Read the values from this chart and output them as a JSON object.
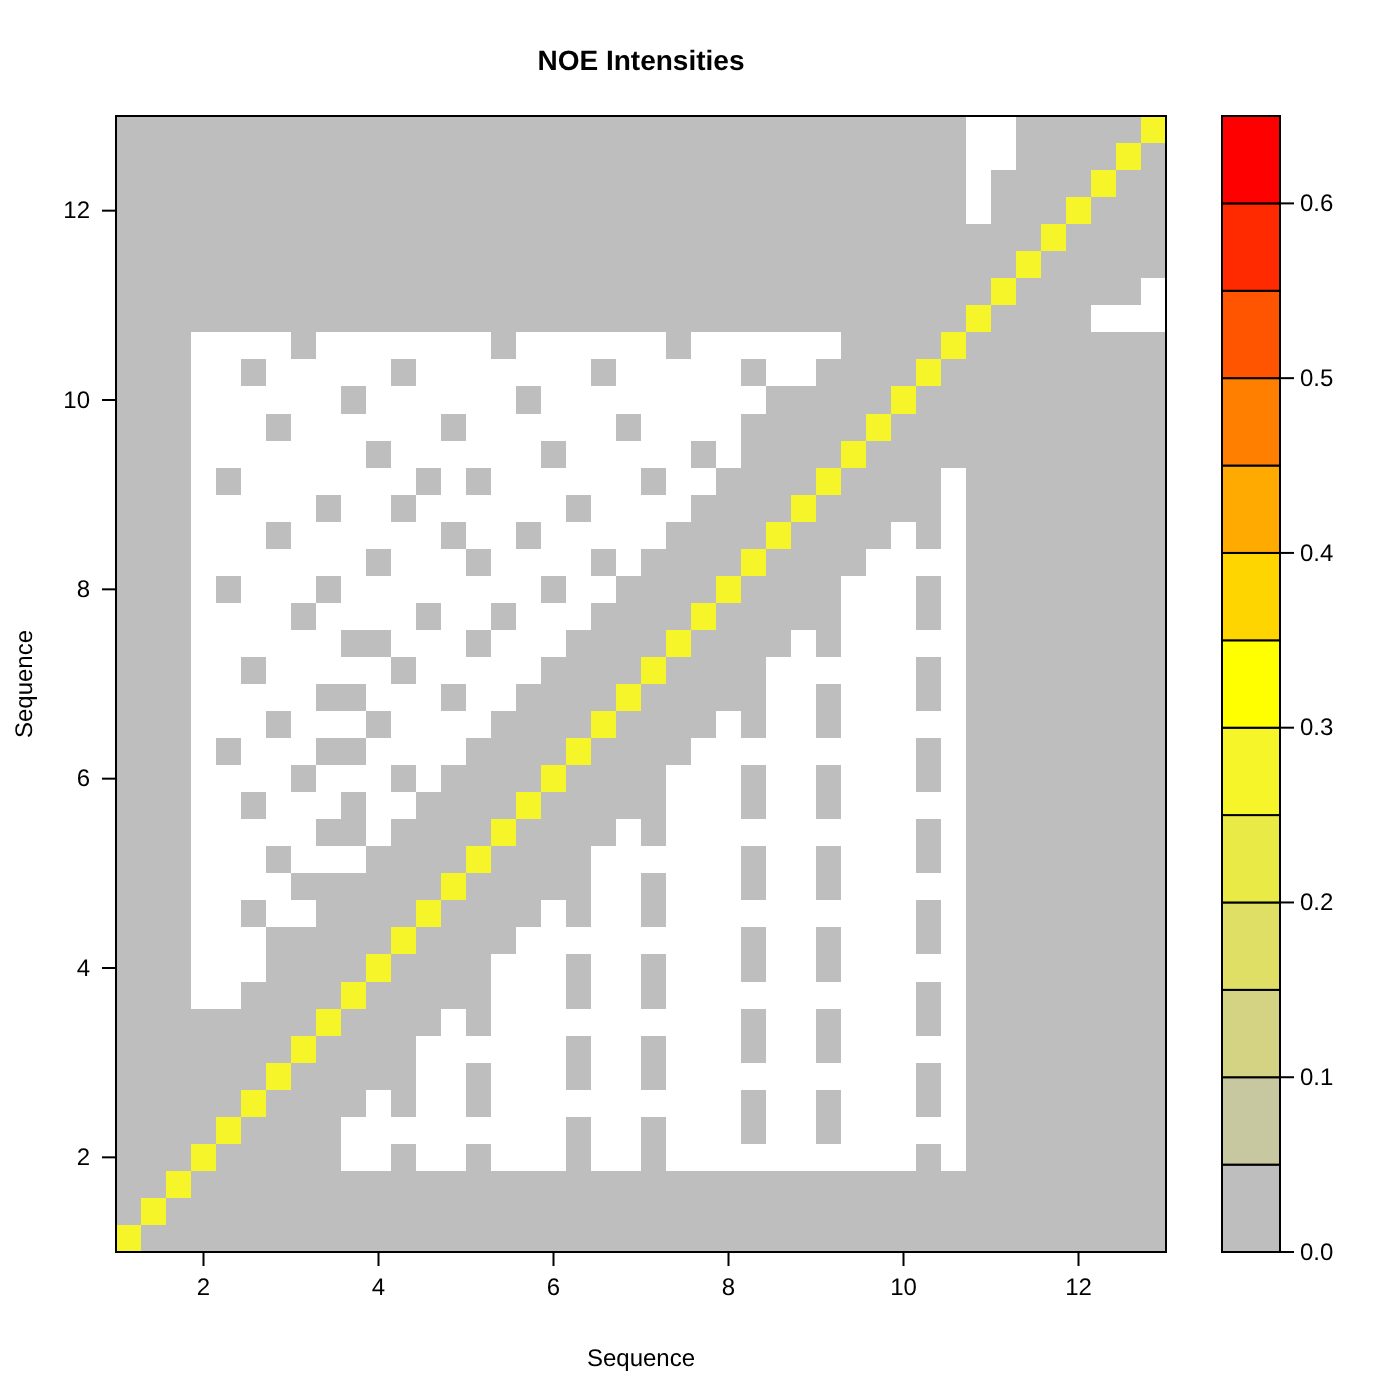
{
  "chart_data": {
    "type": "heatmap",
    "title": "NOE Intensities",
    "xlabel": "Sequence",
    "ylabel": "Sequence",
    "categories": [
      null,
      null,
      null,
      "2",
      null,
      null,
      null,
      null,
      null,
      null,
      "4",
      null,
      null,
      null,
      null,
      null,
      null,
      "6",
      null,
      null,
      null,
      null,
      null,
      null,
      "8",
      null,
      null,
      null,
      null,
      null,
      null,
      "10",
      null,
      null,
      null,
      null,
      null,
      null,
      "12",
      null,
      null,
      null
    ],
    "y_categories": [
      null,
      null,
      null,
      "12",
      null,
      null,
      null,
      null,
      null,
      null,
      "10",
      null,
      null,
      null,
      null,
      null,
      null,
      "8",
      null,
      null,
      null,
      null,
      null,
      null,
      "6",
      null,
      null,
      null,
      null,
      null,
      null,
      "4",
      null,
      null,
      null,
      null,
      null,
      null,
      "2",
      null,
      null,
      null
    ],
    "clim": [
      0,
      0.65
    ],
    "cticks": [
      {
        "value": 0,
        "label": "0.0"
      },
      0.1,
      0.2,
      0.3,
      0.4,
      0.5,
      0.6
    ],
    "colors": [
      "#bebebe",
      "#c8c8a0",
      "#d4d383",
      "#dfdf65",
      "#eaea47",
      "#f5f52a",
      "#ffff00",
      "#ffd500",
      "#ffaa00",
      "#ff8000",
      "#ff5500",
      "#ff2a00",
      "#ff0000"
    ],
    "cells": [
      [
        0,
        0,
        0,
        0,
        0,
        0,
        0,
        0,
        0,
        0,
        0,
        0,
        0,
        0,
        0,
        0,
        0,
        0,
        0,
        0,
        0,
        0,
        0,
        0,
        0,
        0,
        0,
        0,
        0,
        0,
        0,
        0,
        0,
        0,
        null,
        null,
        0,
        0,
        0,
        0,
        0,
        0.25
      ],
      [
        0,
        0,
        0,
        0,
        0,
        0,
        0,
        0,
        0,
        0,
        0,
        0,
        0,
        0,
        0,
        0,
        0,
        0,
        0,
        0,
        0,
        0,
        0,
        0,
        0,
        0,
        0,
        0,
        0,
        0,
        0,
        0,
        0,
        0,
        null,
        null,
        0,
        0,
        0,
        0,
        0.25,
        0
      ],
      [
        0,
        0,
        0,
        0,
        0,
        0,
        0,
        0,
        0,
        0,
        0,
        0,
        0,
        0,
        0,
        0,
        0,
        0,
        0,
        0,
        0,
        0,
        0,
        0,
        0,
        0,
        0,
        0,
        0,
        0,
        0,
        0,
        0,
        0,
        null,
        0,
        0,
        0,
        0,
        0.25,
        0,
        0
      ],
      [
        0,
        0,
        0,
        0,
        0,
        0,
        0,
        0,
        0,
        0,
        0,
        0,
        0,
        0,
        0,
        0,
        0,
        0,
        0,
        0,
        0,
        0,
        0,
        0,
        0,
        0,
        0,
        0,
        0,
        0,
        0,
        0,
        0,
        0,
        null,
        0,
        0,
        0,
        0.25,
        0,
        0,
        0
      ],
      [
        0,
        0,
        0,
        0,
        0,
        0,
        0,
        0,
        0,
        0,
        0,
        0,
        0,
        0,
        0,
        0,
        0,
        0,
        0,
        0,
        0,
        0,
        0,
        0,
        0,
        0,
        0,
        0,
        0,
        0,
        0,
        0,
        0,
        0,
        0,
        0,
        0,
        0.25,
        0,
        0,
        0,
        0
      ],
      [
        0,
        0,
        0,
        0,
        0,
        0,
        0,
        0,
        0,
        0,
        0,
        0,
        0,
        0,
        0,
        0,
        0,
        0,
        0,
        0,
        0,
        0,
        0,
        0,
        0,
        0,
        0,
        0,
        0,
        0,
        0,
        0,
        0,
        0,
        0,
        0,
        0.25,
        0,
        0,
        0,
        0,
        0
      ],
      [
        0,
        0,
        0,
        0,
        0,
        0,
        0,
        0,
        0,
        0,
        0,
        0,
        0,
        0,
        0,
        0,
        0,
        0,
        0,
        0,
        0,
        0,
        0,
        0,
        0,
        0,
        0,
        0,
        0,
        0,
        0,
        0,
        0,
        0,
        0,
        0.25,
        0,
        0,
        0,
        0,
        0,
        null
      ],
      [
        0,
        0,
        0,
        0,
        0,
        0,
        0,
        0,
        0,
        0,
        0,
        0,
        0,
        0,
        0,
        0,
        0,
        0,
        0,
        0,
        0,
        0,
        0,
        0,
        0,
        0,
        0,
        0,
        0,
        0,
        0,
        0,
        0,
        0,
        0.25,
        0,
        0,
        0,
        0,
        null,
        null,
        null
      ],
      [
        0,
        0,
        0,
        null,
        null,
        null,
        null,
        0,
        null,
        null,
        null,
        null,
        null,
        null,
        null,
        0,
        null,
        null,
        null,
        null,
        null,
        null,
        0,
        null,
        null,
        null,
        null,
        null,
        null,
        0,
        0,
        0,
        0,
        0.25,
        0,
        0,
        0,
        0,
        0,
        0,
        0,
        0
      ],
      [
        0,
        0,
        0,
        null,
        null,
        0,
        null,
        null,
        null,
        null,
        null,
        0,
        null,
        null,
        null,
        null,
        null,
        null,
        null,
        0,
        null,
        null,
        null,
        null,
        null,
        0,
        null,
        null,
        0,
        0,
        0,
        0,
        0.25,
        0,
        0,
        0,
        0,
        0,
        0,
        0,
        0,
        0
      ],
      [
        0,
        0,
        0,
        null,
        null,
        null,
        null,
        null,
        null,
        0,
        null,
        null,
        null,
        null,
        null,
        null,
        0,
        null,
        null,
        null,
        null,
        null,
        null,
        null,
        null,
        null,
        0,
        0,
        0,
        0,
        0,
        0.25,
        0,
        0,
        0,
        0,
        0,
        0,
        0,
        0,
        0,
        0
      ],
      [
        0,
        0,
        0,
        null,
        null,
        null,
        0,
        null,
        null,
        null,
        null,
        null,
        null,
        0,
        null,
        null,
        null,
        null,
        null,
        null,
        0,
        null,
        null,
        null,
        null,
        0,
        0,
        0,
        0,
        0,
        0.25,
        0,
        0,
        0,
        0,
        0,
        0,
        0,
        0,
        0,
        0,
        0
      ],
      [
        0,
        0,
        0,
        null,
        null,
        null,
        null,
        null,
        null,
        null,
        0,
        null,
        null,
        null,
        null,
        null,
        null,
        0,
        null,
        null,
        null,
        null,
        null,
        0,
        null,
        0,
        0,
        0,
        0,
        0.25,
        0,
        0,
        0,
        0,
        0,
        0,
        0,
        0,
        0,
        0,
        0,
        0
      ],
      [
        0,
        0,
        0,
        null,
        0,
        null,
        null,
        null,
        null,
        null,
        null,
        null,
        0,
        null,
        0,
        null,
        null,
        null,
        null,
        null,
        null,
        0,
        null,
        null,
        0,
        0,
        0,
        0,
        0.25,
        0,
        0,
        0,
        0,
        null,
        0,
        0,
        0,
        0,
        0,
        0,
        0,
        0
      ],
      [
        0,
        0,
        0,
        null,
        null,
        null,
        null,
        null,
        0,
        null,
        null,
        0,
        null,
        null,
        null,
        null,
        null,
        null,
        0,
        null,
        null,
        null,
        null,
        0,
        0,
        0,
        0,
        0.25,
        0,
        0,
        0,
        0,
        0,
        null,
        0,
        0,
        0,
        0,
        0,
        0,
        0,
        0
      ],
      [
        0,
        0,
        0,
        null,
        null,
        null,
        0,
        null,
        null,
        null,
        null,
        null,
        null,
        0,
        null,
        null,
        0,
        null,
        null,
        null,
        null,
        null,
        0,
        0,
        0,
        0,
        0.25,
        0,
        0,
        0,
        0,
        null,
        0,
        null,
        0,
        0,
        0,
        0,
        0,
        0,
        0,
        0
      ],
      [
        0,
        0,
        0,
        null,
        null,
        null,
        null,
        null,
        null,
        null,
        0,
        null,
        null,
        null,
        0,
        null,
        null,
        null,
        null,
        0,
        null,
        0,
        0,
        0,
        0,
        0.25,
        0,
        0,
        0,
        0,
        null,
        null,
        null,
        null,
        0,
        0,
        0,
        0,
        0,
        0,
        0,
        0
      ],
      [
        0,
        0,
        0,
        null,
        0,
        null,
        null,
        null,
        0,
        null,
        null,
        null,
        null,
        null,
        null,
        null,
        null,
        0,
        null,
        null,
        0,
        0,
        0,
        0,
        0.25,
        0,
        0,
        0,
        0,
        null,
        null,
        null,
        0,
        null,
        0,
        0,
        0,
        0,
        0,
        0,
        0,
        0
      ],
      [
        0,
        0,
        0,
        null,
        null,
        null,
        null,
        0,
        null,
        null,
        null,
        null,
        0,
        null,
        null,
        0,
        null,
        null,
        null,
        0,
        0,
        0,
        0,
        0.25,
        0,
        0,
        0,
        0,
        0,
        null,
        null,
        null,
        0,
        null,
        0,
        0,
        0,
        0,
        0,
        0,
        0,
        0
      ],
      [
        0,
        0,
        0,
        null,
        null,
        null,
        null,
        null,
        null,
        0,
        0,
        null,
        null,
        null,
        0,
        null,
        null,
        null,
        0,
        0,
        0,
        0,
        0.25,
        0,
        0,
        0,
        0,
        null,
        0,
        null,
        null,
        null,
        null,
        null,
        0,
        0,
        0,
        0,
        0,
        0,
        0,
        0
      ],
      [
        0,
        0,
        0,
        null,
        null,
        0,
        null,
        null,
        null,
        null,
        null,
        0,
        null,
        null,
        null,
        null,
        null,
        0,
        0,
        0,
        0,
        0.25,
        0,
        0,
        0,
        0,
        null,
        null,
        null,
        null,
        null,
        null,
        0,
        null,
        0,
        0,
        0,
        0,
        0,
        0,
        0,
        0
      ],
      [
        0,
        0,
        0,
        null,
        null,
        null,
        null,
        null,
        0,
        0,
        null,
        null,
        null,
        0,
        null,
        null,
        0,
        0,
        0,
        0,
        0.25,
        0,
        0,
        0,
        0,
        0,
        null,
        null,
        0,
        null,
        null,
        null,
        0,
        null,
        0,
        0,
        0,
        0,
        0,
        0,
        0,
        0
      ],
      [
        0,
        0,
        0,
        null,
        null,
        null,
        0,
        null,
        null,
        null,
        0,
        null,
        null,
        null,
        null,
        0,
        0,
        0,
        0,
        0.25,
        0,
        0,
        0,
        0,
        null,
        0,
        null,
        null,
        0,
        null,
        null,
        null,
        null,
        null,
        0,
        0,
        0,
        0,
        0,
        0,
        0,
        0
      ],
      [
        0,
        0,
        0,
        null,
        0,
        null,
        null,
        null,
        0,
        0,
        null,
        null,
        null,
        null,
        0,
        0,
        0,
        0,
        0.25,
        0,
        0,
        0,
        0,
        null,
        null,
        null,
        null,
        null,
        null,
        null,
        null,
        null,
        0,
        null,
        0,
        0,
        0,
        0,
        0,
        0,
        0,
        0
      ],
      [
        0,
        0,
        0,
        null,
        null,
        null,
        null,
        0,
        null,
        null,
        null,
        0,
        null,
        0,
        0,
        0,
        0,
        0.25,
        0,
        0,
        0,
        0,
        null,
        null,
        null,
        0,
        null,
        null,
        0,
        null,
        null,
        null,
        0,
        null,
        0,
        0,
        0,
        0,
        0,
        0,
        0,
        0
      ],
      [
        0,
        0,
        0,
        null,
        null,
        0,
        null,
        null,
        null,
        0,
        null,
        null,
        0,
        0,
        0,
        0,
        0.25,
        0,
        0,
        0,
        0,
        0,
        null,
        null,
        null,
        0,
        null,
        null,
        0,
        null,
        null,
        null,
        null,
        null,
        0,
        0,
        0,
        0,
        0,
        0,
        0,
        0
      ],
      [
        0,
        0,
        0,
        null,
        null,
        null,
        null,
        null,
        0,
        0,
        null,
        0,
        0,
        0,
        0,
        0.25,
        0,
        0,
        0,
        0,
        null,
        0,
        null,
        null,
        null,
        null,
        null,
        null,
        null,
        null,
        null,
        null,
        0,
        null,
        0,
        0,
        0,
        0,
        0,
        0,
        0,
        0
      ],
      [
        0,
        0,
        0,
        null,
        null,
        null,
        0,
        null,
        null,
        null,
        0,
        0,
        0,
        0,
        0.25,
        0,
        0,
        0,
        0,
        null,
        null,
        null,
        null,
        null,
        null,
        0,
        null,
        null,
        0,
        null,
        null,
        null,
        0,
        null,
        0,
        0,
        0,
        0,
        0,
        0,
        0,
        0
      ],
      [
        0,
        0,
        0,
        null,
        null,
        null,
        null,
        0,
        0,
        0,
        0,
        0,
        0,
        0.25,
        0,
        0,
        0,
        0,
        0,
        null,
        null,
        0,
        null,
        null,
        null,
        0,
        null,
        null,
        0,
        null,
        null,
        null,
        null,
        null,
        0,
        0,
        0,
        0,
        0,
        0,
        0,
        0
      ],
      [
        0,
        0,
        0,
        null,
        null,
        0,
        null,
        null,
        0,
        0,
        0,
        0,
        0.25,
        0,
        0,
        0,
        0,
        null,
        0,
        null,
        null,
        0,
        null,
        null,
        null,
        null,
        null,
        null,
        null,
        null,
        null,
        null,
        0,
        null,
        0,
        0,
        0,
        0,
        0,
        0,
        0,
        0
      ],
      [
        0,
        0,
        0,
        null,
        null,
        null,
        0,
        0,
        0,
        0,
        0,
        0.25,
        0,
        0,
        0,
        0,
        null,
        null,
        null,
        null,
        null,
        null,
        null,
        null,
        null,
        0,
        null,
        null,
        0,
        null,
        null,
        null,
        0,
        null,
        0,
        0,
        0,
        0,
        0,
        0,
        0,
        0
      ],
      [
        0,
        0,
        0,
        null,
        null,
        null,
        0,
        0,
        0,
        0,
        0.25,
        0,
        0,
        0,
        0,
        null,
        null,
        null,
        0,
        null,
        null,
        0,
        null,
        null,
        null,
        0,
        null,
        null,
        0,
        null,
        null,
        null,
        null,
        null,
        0,
        0,
        0,
        0,
        0,
        0,
        0,
        0
      ],
      [
        0,
        0,
        0,
        null,
        null,
        0,
        0,
        0,
        0,
        0.25,
        0,
        0,
        0,
        0,
        0,
        null,
        null,
        null,
        0,
        null,
        null,
        0,
        null,
        null,
        null,
        null,
        null,
        null,
        null,
        null,
        null,
        null,
        0,
        null,
        0,
        0,
        0,
        0,
        0,
        0,
        0,
        0
      ],
      [
        0,
        0,
        0,
        0,
        0,
        0,
        0,
        0,
        0.25,
        0,
        0,
        0,
        0,
        null,
        0,
        null,
        null,
        null,
        null,
        null,
        null,
        null,
        null,
        null,
        null,
        0,
        null,
        null,
        0,
        null,
        null,
        null,
        0,
        null,
        0,
        0,
        0,
        0,
        0,
        0,
        0,
        0
      ],
      [
        0,
        0,
        0,
        0,
        0,
        0,
        0,
        0.25,
        0,
        0,
        0,
        0,
        null,
        null,
        null,
        null,
        null,
        null,
        0,
        null,
        null,
        0,
        null,
        null,
        null,
        0,
        null,
        null,
        0,
        null,
        null,
        null,
        null,
        null,
        0,
        0,
        0,
        0,
        0,
        0,
        0,
        0
      ],
      [
        0,
        0,
        0,
        0,
        0,
        0,
        0.25,
        0,
        0,
        0,
        0,
        0,
        null,
        null,
        0,
        null,
        null,
        null,
        0,
        null,
        null,
        0,
        null,
        null,
        null,
        null,
        null,
        null,
        null,
        null,
        null,
        null,
        0,
        null,
        0,
        0,
        0,
        0,
        0,
        0,
        0,
        0
      ],
      [
        0,
        0,
        0,
        0,
        0,
        0.25,
        0,
        0,
        0,
        0,
        null,
        0,
        null,
        null,
        0,
        null,
        null,
        null,
        null,
        null,
        null,
        null,
        null,
        null,
        null,
        0,
        null,
        null,
        0,
        null,
        null,
        null,
        0,
        null,
        0,
        0,
        0,
        0,
        0,
        0,
        0,
        0
      ],
      [
        0,
        0,
        0,
        0,
        0.25,
        0,
        0,
        0,
        0,
        null,
        null,
        null,
        null,
        null,
        null,
        null,
        null,
        null,
        0,
        null,
        null,
        0,
        null,
        null,
        null,
        0,
        null,
        null,
        0,
        null,
        null,
        null,
        null,
        null,
        0,
        0,
        0,
        0,
        0,
        0,
        0,
        0
      ],
      [
        0,
        0,
        0,
        0.25,
        0,
        0,
        0,
        0,
        0,
        null,
        null,
        0,
        null,
        null,
        0,
        null,
        null,
        null,
        0,
        null,
        null,
        0,
        null,
        null,
        null,
        null,
        null,
        null,
        null,
        null,
        null,
        null,
        0,
        null,
        0,
        0,
        0,
        0,
        0,
        0,
        0,
        0
      ],
      [
        0,
        0,
        0.25,
        0,
        0,
        0,
        0,
        0,
        0,
        0,
        0,
        0,
        0,
        0,
        0,
        0,
        0,
        0,
        0,
        0,
        0,
        0,
        0,
        0,
        0,
        0,
        0,
        0,
        0,
        0,
        0,
        0,
        0,
        0,
        0,
        0,
        0,
        0,
        0,
        0,
        0,
        0
      ],
      [
        0,
        0.25,
        0,
        0,
        0,
        0,
        0,
        0,
        0,
        0,
        0,
        0,
        0,
        0,
        0,
        0,
        0,
        0,
        0,
        0,
        0,
        0,
        0,
        0,
        0,
        0,
        0,
        0,
        0,
        0,
        0,
        0,
        0,
        0,
        0,
        0,
        0,
        0,
        0,
        0,
        0,
        0
      ],
      [
        0.25,
        0,
        0,
        0,
        0,
        0,
        0,
        0,
        0,
        0,
        0,
        0,
        0,
        0,
        0,
        0,
        0,
        0,
        0,
        0,
        0,
        0,
        0,
        0,
        0,
        0,
        0,
        0,
        0,
        0,
        0,
        0,
        0,
        0,
        0,
        0,
        0,
        0,
        0,
        0,
        0,
        0
      ]
    ]
  }
}
